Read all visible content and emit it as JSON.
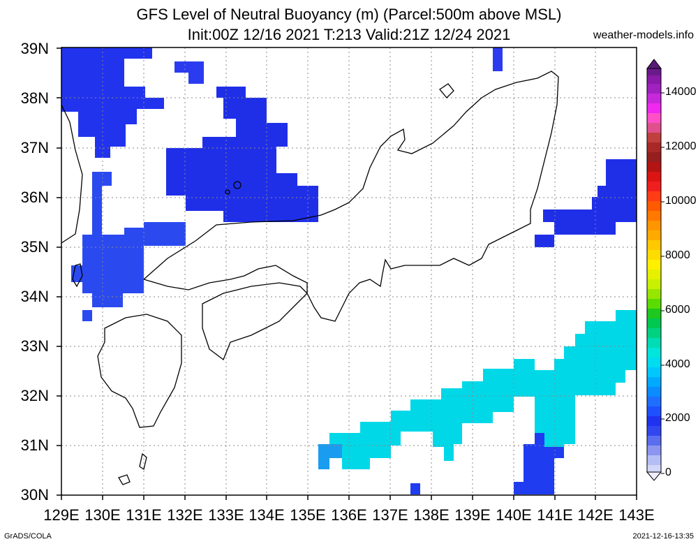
{
  "title_line1": "GFS Level of Neutral Buoyancy (m) (Parcel:500m above MSL)",
  "title_line2": "Init:00Z 12/16 2021 T:213 Valid:21Z 12/24 2021",
  "site": "weather-models.info",
  "footer_left": "GrADS/COLA",
  "footer_right": "2021-12-16-13:35",
  "lat_labels": [
    "39N",
    "38N",
    "37N",
    "36N",
    "35N",
    "34N",
    "33N",
    "32N",
    "31N",
    "30N"
  ],
  "lon_labels": [
    "129E",
    "130E",
    "131E",
    "132E",
    "133E",
    "134E",
    "135E",
    "136E",
    "137E",
    "138E",
    "139E",
    "140E",
    "141E",
    "142E",
    "143E"
  ],
  "colorbar_labels": [
    "14000",
    "12000",
    "10000",
    "8000",
    "6000",
    "4000",
    "2000",
    "0"
  ],
  "colors": {
    "lnb_2000": "#1e3cff",
    "lnb_1500": "#2850f0",
    "lnb_2500": "#1e6eff",
    "lnb_3000": "#00b4ff",
    "lnb_3500": "#00dcdc",
    "grid": "#888888"
  }
}
